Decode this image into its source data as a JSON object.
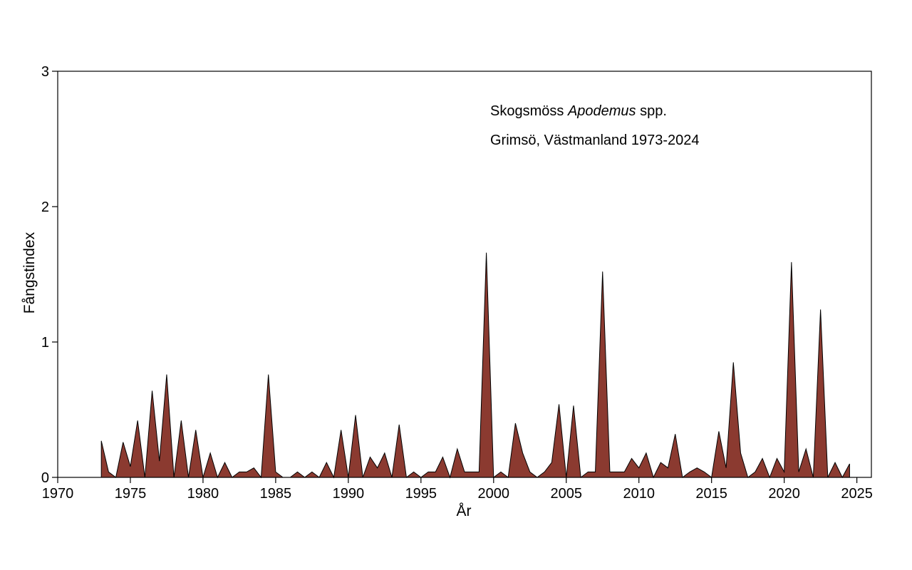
{
  "chart_data": {
    "type": "area",
    "xlabel": "År",
    "ylabel": "Fångstindex",
    "xlim": [
      1970,
      2026
    ],
    "ylim": [
      0,
      3
    ],
    "x_ticks": [
      "1970",
      "1975",
      "1980",
      "1985",
      "1990",
      "1995",
      "2000",
      "2005",
      "2010",
      "2015",
      "2020",
      "2025"
    ],
    "y_ticks": [
      "0",
      "1",
      "2",
      "3"
    ],
    "grid": false,
    "legend": "none",
    "fill_color": "#8B3A30",
    "line_color": "#000000",
    "annotations": {
      "line1_prefix": "Skogsmöss ",
      "line1_italic": "Apodemus",
      "line1_suffix": " spp.",
      "line2": "Grimsö, Västmanland 1973-2024"
    },
    "x": [
      1973.0,
      1973.5,
      1974.0,
      1974.5,
      1975.0,
      1975.5,
      1976.0,
      1976.5,
      1977.0,
      1977.5,
      1978.0,
      1978.5,
      1979.0,
      1979.5,
      1980.0,
      1980.5,
      1981.0,
      1981.5,
      1982.0,
      1982.5,
      1983.0,
      1983.5,
      1984.0,
      1984.5,
      1985.0,
      1985.5,
      1986.0,
      1986.5,
      1987.0,
      1987.5,
      1988.0,
      1988.5,
      1989.0,
      1989.5,
      1990.0,
      1990.5,
      1991.0,
      1991.5,
      1992.0,
      1992.5,
      1993.0,
      1993.5,
      1994.0,
      1994.5,
      1995.0,
      1995.5,
      1996.0,
      1996.5,
      1997.0,
      1997.5,
      1998.0,
      1998.5,
      1999.0,
      1999.5,
      2000.0,
      2000.5,
      2001.0,
      2001.5,
      2002.0,
      2002.5,
      2003.0,
      2003.5,
      2004.0,
      2004.5,
      2005.0,
      2005.5,
      2006.0,
      2006.5,
      2007.0,
      2007.5,
      2008.0,
      2008.5,
      2009.0,
      2009.5,
      2010.0,
      2010.5,
      2011.0,
      2011.5,
      2012.0,
      2012.5,
      2013.0,
      2013.5,
      2014.0,
      2014.5,
      2015.0,
      2015.5,
      2016.0,
      2016.5,
      2017.0,
      2017.5,
      2018.0,
      2018.5,
      2019.0,
      2019.5,
      2020.0,
      2020.5,
      2021.0,
      2021.5,
      2022.0,
      2022.5,
      2023.0,
      2023.5,
      2024.0,
      2024.5
    ],
    "values": [
      0.27,
      0.04,
      0.0,
      0.26,
      0.08,
      0.42,
      0.0,
      0.64,
      0.12,
      0.76,
      0.0,
      0.42,
      0.0,
      0.35,
      0.0,
      0.18,
      0.0,
      0.11,
      0.0,
      0.04,
      0.04,
      0.07,
      0.0,
      0.76,
      0.04,
      0.0,
      0.0,
      0.04,
      0.0,
      0.04,
      0.0,
      0.11,
      0.0,
      0.35,
      0.0,
      0.46,
      0.0,
      0.15,
      0.07,
      0.18,
      0.0,
      0.39,
      0.0,
      0.04,
      0.0,
      0.04,
      0.04,
      0.15,
      0.0,
      0.21,
      0.04,
      0.04,
      0.04,
      1.66,
      0.0,
      0.04,
      0.0,
      0.4,
      0.18,
      0.04,
      0.0,
      0.04,
      0.11,
      0.54,
      0.0,
      0.53,
      0.0,
      0.04,
      0.04,
      1.52,
      0.04,
      0.04,
      0.04,
      0.14,
      0.07,
      0.18,
      0.0,
      0.11,
      0.07,
      0.32,
      0.0,
      0.04,
      0.07,
      0.04,
      0.0,
      0.34,
      0.07,
      0.85,
      0.18,
      0.0,
      0.04,
      0.14,
      0.0,
      0.14,
      0.04,
      1.59,
      0.04,
      0.21,
      0.0,
      1.24,
      0.0,
      0.11,
      0.0,
      0.1
    ]
  }
}
